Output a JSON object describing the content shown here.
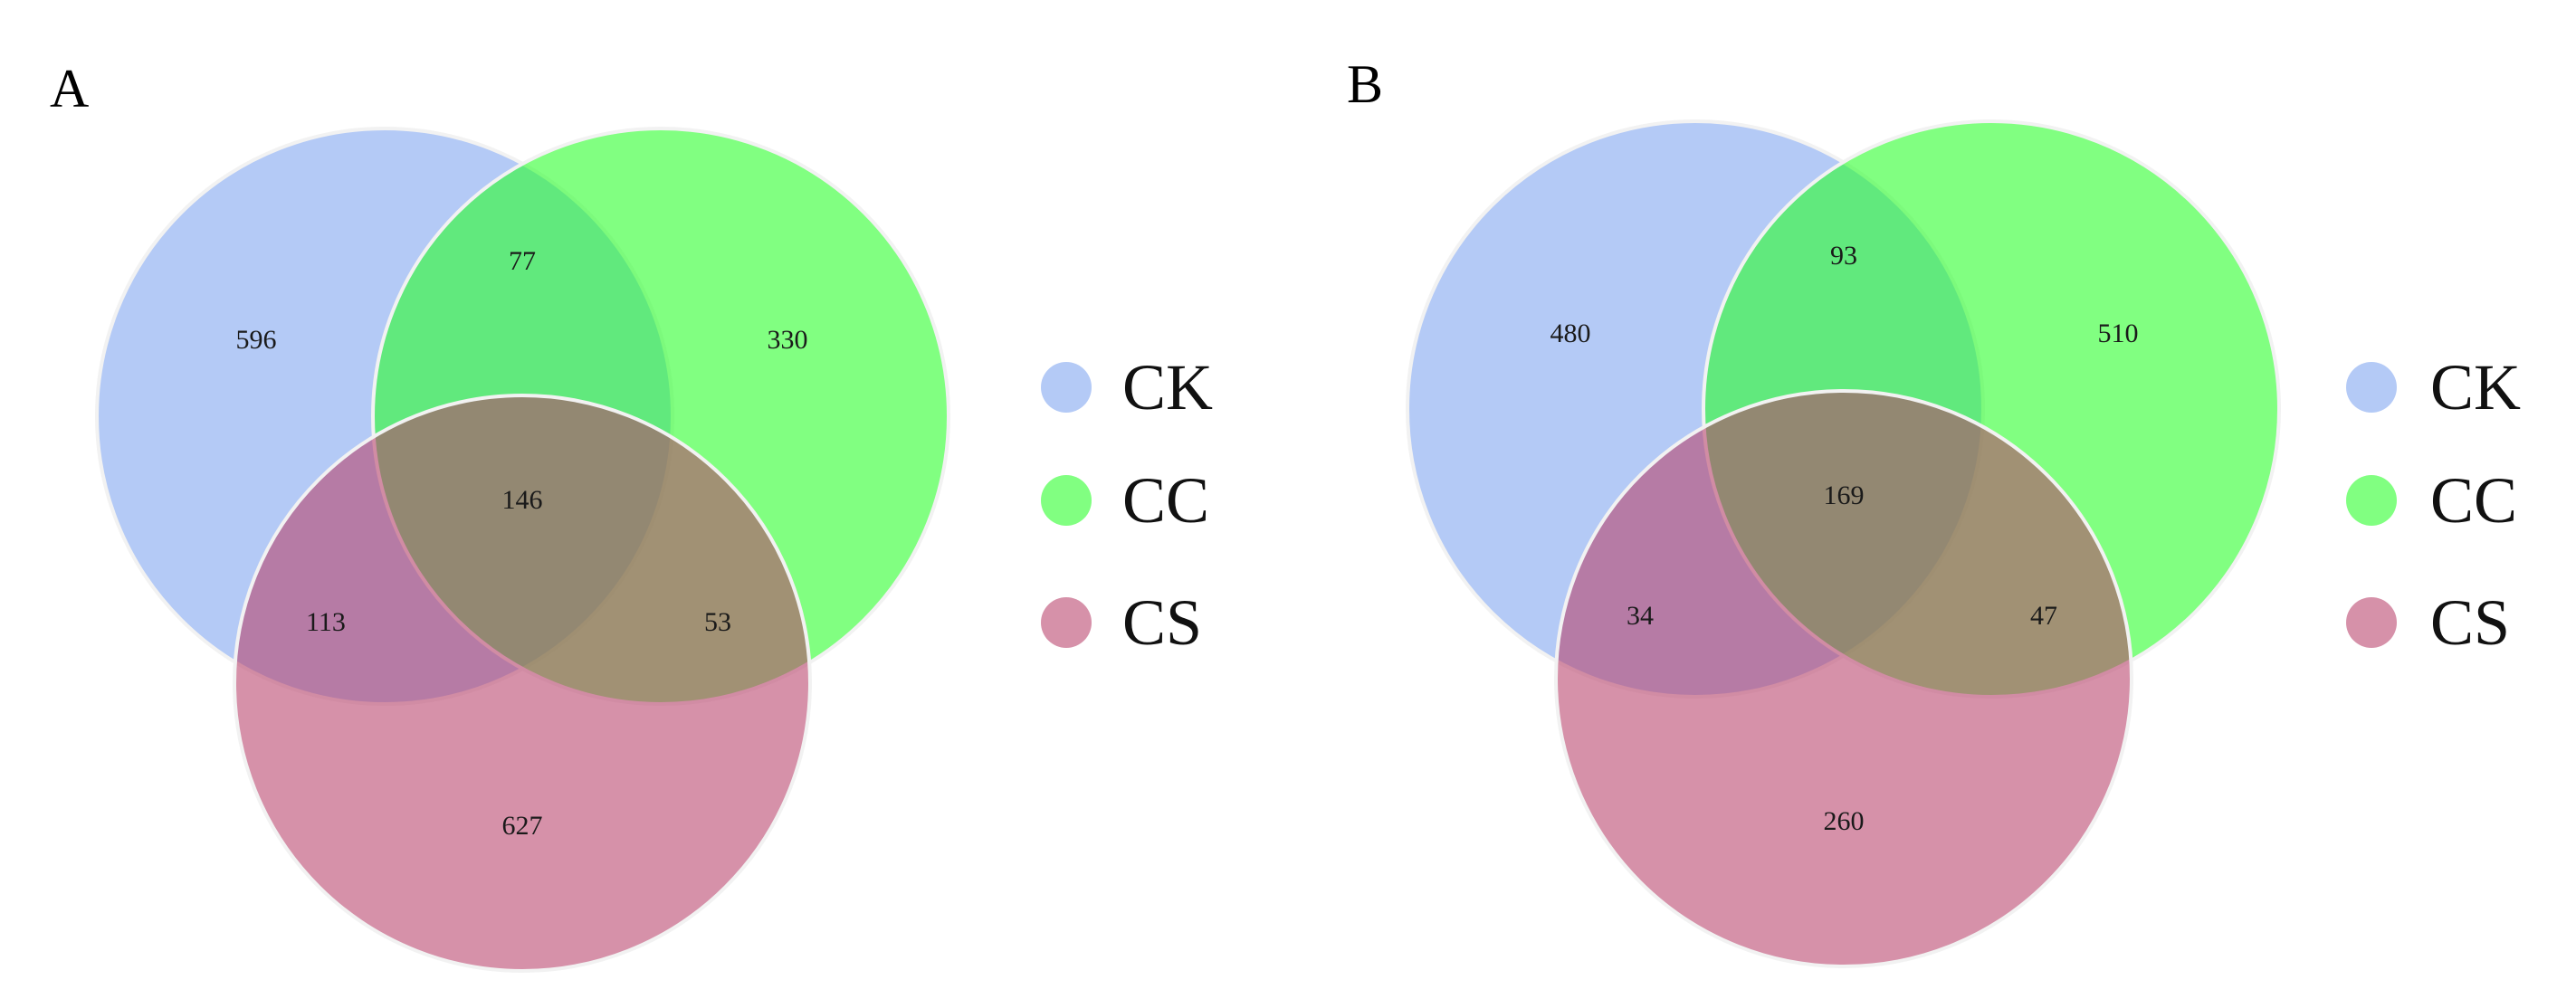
{
  "colors": {
    "CK": "#7ea3ef",
    "CC": "#26ff26",
    "CS": "#b9416b"
  },
  "circle_opacity": 0.58,
  "panels": [
    {
      "label": "A",
      "regions": {
        "CK_only": "596",
        "CC_only": "330",
        "CS_only": "627",
        "CK_CC": "77",
        "CK_CS": "113",
        "CC_CS": "53",
        "CK_CC_CS": "146"
      },
      "legend": [
        "CK",
        "CC",
        "CS"
      ]
    },
    {
      "label": "B",
      "regions": {
        "CK_only": "480",
        "CC_only": "510",
        "CS_only": "260",
        "CK_CC": "93",
        "CK_CS": "34",
        "CC_CS": "47",
        "CK_CC_CS": "169"
      },
      "legend": [
        "CK",
        "CC",
        "CS"
      ]
    }
  ]
}
